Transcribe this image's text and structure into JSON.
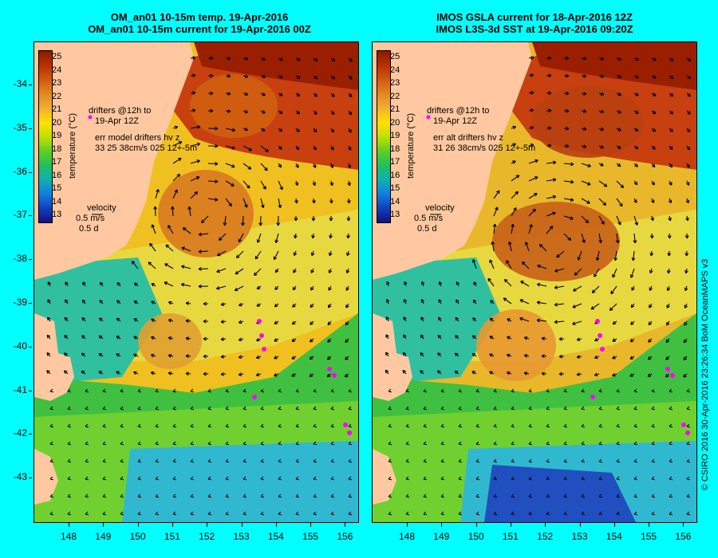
{
  "left_panel": {
    "title_line1": "OM_an01 10-15m temp. 19-Apr-2016",
    "title_line2": "OM_an01 10-15m current for 19-Apr-2016 00Z",
    "drifters_label": "drifters @12h to",
    "drifters_date": "19-Apr 12Z",
    "err_label": "err model drifters hv z",
    "err_values": "33 25 38cm/s 025 12+-5m"
  },
  "right_panel": {
    "title_line1": "IMOS GSLA current for 18-Apr-2016 12Z",
    "title_line2": "IMOS L3S-3d SST at 19-Apr-2016 09:20Z",
    "drifters_label": "drifters @12h to",
    "drifters_date": "19-Apr 12Z",
    "err_label": "err alt drifters hv z",
    "err_values": "31 26 38cm/s 025 12+-5m"
  },
  "colorbar": {
    "label": "temperature (°C)",
    "ticks": [
      "25",
      "24",
      "23",
      "22",
      "21",
      "20",
      "19",
      "18",
      "17",
      "16",
      "15",
      "14",
      "13"
    ],
    "colors": [
      "#8b1a00",
      "#b83000",
      "#d25a10",
      "#e08a20",
      "#f0b030",
      "#ffe000",
      "#c0e000",
      "#60d020",
      "#20c060",
      "#10b0b0",
      "#1080e0",
      "#1040c0",
      "#101080"
    ]
  },
  "velocity_legend": {
    "title": "velocity",
    "speed": "0.5 m/s",
    "duration": "0.5 d"
  },
  "axes": {
    "lat_labels": [
      "-34",
      "-35",
      "-36",
      "-37",
      "-38",
      "-39",
      "-40",
      "-41",
      "-42",
      "-43"
    ],
    "lon_labels": [
      "148",
      "149",
      "150",
      "151",
      "152",
      "153",
      "154",
      "155",
      "156"
    ]
  },
  "credit": "© CSIRO 2016  30-Apr-2016 23:26:34 BoM OceanMAPS v3",
  "colors": {
    "background": "#00ffff",
    "land": "#ffc8a0",
    "drifter": "#ff00ff"
  }
}
